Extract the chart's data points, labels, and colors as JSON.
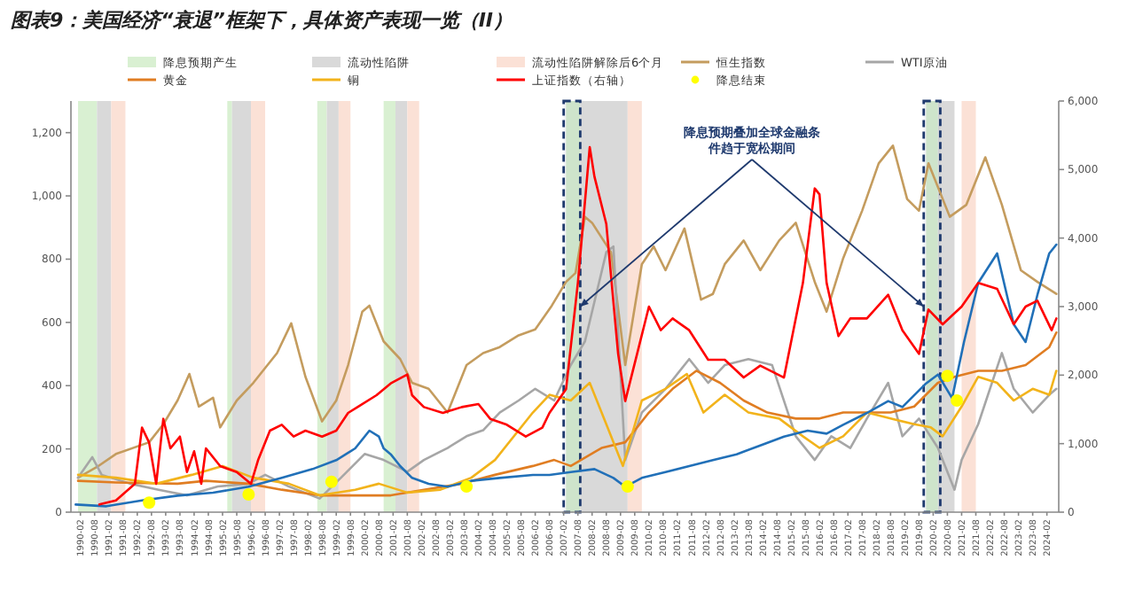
{
  "chart_data": {
    "type": "line",
    "title": "图表9：美国经济“衰退”框架下，具体资产表现一览（II）",
    "legend": "top",
    "xlim": [
      "1989-10",
      "2024-07"
    ],
    "xticks": [
      "1990-02",
      "1990-08",
      "1991-02",
      "1991-08",
      "1992-02",
      "1992-08",
      "1993-02",
      "1993-08",
      "1994-02",
      "1994-08",
      "1995-02",
      "1995-08",
      "1996-02",
      "1996-08",
      "1997-02",
      "1997-08",
      "1998-02",
      "1998-08",
      "1999-02",
      "1999-08",
      "2000-02",
      "2000-08",
      "2001-02",
      "2001-08",
      "2002-02",
      "2002-08",
      "2003-02",
      "2003-08",
      "2004-02",
      "2004-08",
      "2005-02",
      "2005-08",
      "2006-02",
      "2006-08",
      "2007-02",
      "2007-08",
      "2008-02",
      "2008-08",
      "2009-02",
      "2009-08",
      "2010-02",
      "2010-08",
      "2011-02",
      "2011-08",
      "2012-02",
      "2012-08",
      "2013-02",
      "2013-08",
      "2014-02",
      "2014-08",
      "2015-02",
      "2015-08",
      "2016-02",
      "2016-08",
      "2017-02",
      "2017-08",
      "2018-02",
      "2018-08",
      "2019-02",
      "2019-08",
      "2020-02",
      "2020-08",
      "2021-02",
      "2021-08",
      "2022-02",
      "2022-08",
      "2023-02",
      "2023-08",
      "2024-02"
    ],
    "ylim": [
      0,
      1300
    ],
    "yticks": [
      0,
      200,
      400,
      600,
      800,
      {
        "value": 1000,
        "label": "1,000"
      },
      {
        "value": 1200,
        "label": "1,200"
      }
    ],
    "y2lim": [
      0,
      6000
    ],
    "y2ticks": [
      0,
      {
        "value": 1000,
        "label": "1,000"
      },
      {
        "value": 2000,
        "label": "2,000"
      },
      {
        "value": 3000,
        "label": "3,000"
      },
      {
        "value": 4000,
        "label": "4,000"
      },
      {
        "value": 5000,
        "label": "5,000"
      },
      {
        "value": 6000,
        "label": "6,000"
      }
    ],
    "bands": [
      {
        "axis": "x",
        "from": "1990-01",
        "to": "1990-09",
        "label": "降息预期产生",
        "color": "#d9f0d2"
      },
      {
        "axis": "x",
        "from": "1990-09",
        "to": "1991-03",
        "label": "流动性陷阱",
        "color": "#d9d9d9"
      },
      {
        "axis": "x",
        "from": "1991-03",
        "to": "1991-09",
        "label": "流动性陷阱解除后6个月",
        "color": "#fbe1d6"
      },
      {
        "axis": "x",
        "from": "1995-04",
        "to": "1995-06",
        "color": "#d9f0d2"
      },
      {
        "axis": "x",
        "from": "1995-06",
        "to": "1996-02",
        "color": "#d9d9d9"
      },
      {
        "axis": "x",
        "from": "1996-02",
        "to": "1996-08",
        "color": "#fbe1d6"
      },
      {
        "axis": "x",
        "from": "1998-06",
        "to": "1998-10",
        "color": "#d9f0d2"
      },
      {
        "axis": "x",
        "from": "1998-10",
        "to": "1999-03",
        "color": "#d9d9d9"
      },
      {
        "axis": "x",
        "from": "1999-03",
        "to": "1999-08",
        "color": "#fbe1d6"
      },
      {
        "axis": "x",
        "from": "2000-10",
        "to": "2001-03",
        "color": "#d9f0d2"
      },
      {
        "axis": "x",
        "from": "2001-03",
        "to": "2001-08",
        "color": "#d9d9d9"
      },
      {
        "axis": "x",
        "from": "2001-08",
        "to": "2002-01",
        "color": "#fbe1d6"
      },
      {
        "axis": "x",
        "from": "2007-03",
        "to": "2007-09",
        "color": "#d9f0d2"
      },
      {
        "axis": "x",
        "from": "2007-09",
        "to": "2009-05",
        "color": "#d9d9d9"
      },
      {
        "axis": "x",
        "from": "2009-05",
        "to": "2009-11",
        "color": "#fbe1d6"
      },
      {
        "axis": "x",
        "from": "2019-11",
        "to": "2020-04",
        "color": "#d9f0d2"
      },
      {
        "axis": "x",
        "from": "2020-04",
        "to": "2020-11",
        "color": "#d9d9d9"
      },
      {
        "axis": "x",
        "from": "2021-02",
        "to": "2021-08",
        "color": "#fbe1d6"
      },
      {
        "axis": "x",
        "from": "2007-02",
        "to": "2007-09",
        "color": "#1f3a6e"
      },
      {
        "axis": "x",
        "from": "2019-10",
        "to": "2020-05",
        "color": "#1f3a6e"
      }
    ],
    "annotations": [
      {
        "text": "降息预期叠加全球金融条件趋于宽松期间",
        "x": "2007-09",
        "y": 650
      }
    ],
    "series": [
      {
        "name": "恒生指数",
        "color": "#c49c5e",
        "x": [
          "1990-01",
          "1990-09",
          "1991-05",
          "1992-07",
          "1993-01",
          "1993-07",
          "1993-12",
          "1994-04",
          "1994-10",
          "1995-01",
          "1995-08",
          "1996-03",
          "1997-01",
          "1997-07",
          "1998-01",
          "1998-08",
          "1999-02",
          "1999-07",
          "2000-01",
          "2000-04",
          "2000-10",
          "2001-05",
          "2001-10",
          "2002-05",
          "2003-01",
          "2003-09",
          "2004-04",
          "2004-11",
          "2005-07",
          "2006-02",
          "2006-09",
          "2007-03",
          "2007-07",
          "2007-11",
          "2008-02",
          "2008-10",
          "2009-04",
          "2009-11",
          "2010-04",
          "2010-09",
          "2011-05",
          "2011-12",
          "2012-05",
          "2012-10",
          "2013-06",
          "2014-01",
          "2014-09",
          "2015-04",
          "2015-12",
          "2016-05",
          "2016-12",
          "2017-08",
          "2018-03",
          "2018-09",
          "2019-03",
          "2019-08",
          "2019-12",
          "2020-09",
          "2021-04",
          "2021-12",
          "2022-07",
          "2023-03",
          "2023-10",
          "2024-06"
        ],
        "values": [
          109,
          143,
          184,
          221,
          278,
          353,
          437,
          334,
          362,
          268,
          353,
          409,
          503,
          597,
          428,
          287,
          353,
          465,
          634,
          653,
          540,
          484,
          409,
          390,
          315,
          465,
          503,
          522,
          559,
          578,
          653,
          728,
          756,
          934,
          915,
          822,
          465,
          784,
          840,
          765,
          897,
          672,
          690,
          784,
          859,
          765,
          859,
          915,
          728,
          634,
          803,
          953,
          1103,
          1159,
          990,
          953,
          1103,
          934,
          972,
          1122,
          972,
          765,
          728,
          690
        ]
      },
      {
        "name": "WTI原油",
        "color": "#a6a6a6",
        "x": [
          "1990-01",
          "1990-07",
          "1990-11",
          "1991-11",
          "1992-11",
          "1993-11",
          "1994-12",
          "1996-01",
          "1996-08",
          "1997-06",
          "1998-07",
          "1999-04",
          "2000-02",
          "2000-10",
          "2001-08",
          "2002-03",
          "2003-01",
          "2003-09",
          "2004-04",
          "2004-11",
          "2005-07",
          "2006-02",
          "2006-10",
          "2007-05",
          "2007-11",
          "2008-08",
          "2008-11",
          "2009-04",
          "2009-11",
          "2010-09",
          "2011-07",
          "2012-03",
          "2012-10",
          "2013-08",
          "2014-06",
          "2015-04",
          "2015-12",
          "2016-07",
          "2017-03",
          "2017-10",
          "2018-07",
          "2019-01",
          "2019-08",
          "2020-04",
          "2020-11",
          "2021-02",
          "2021-09",
          "2022-07",
          "2022-12",
          "2023-08",
          "2024-03",
          "2024-06"
        ],
        "values": [
          109,
          174,
          118,
          90,
          71,
          53,
          81,
          90,
          118,
          81,
          43,
          109,
          184,
          165,
          128,
          165,
          203,
          240,
          259,
          315,
          353,
          390,
          353,
          465,
          540,
          822,
          840,
          165,
          315,
          390,
          484,
          409,
          465,
          484,
          465,
          240,
          165,
          240,
          203,
          296,
          409,
          240,
          296,
          203,
          71,
          165,
          278,
          503,
          390,
          315,
          371,
          390
        ]
      },
      {
        "name": "黄金",
        "color": "#e07d22",
        "x": [
          "1990-01",
          "1991-05",
          "1993-07",
          "1994-07",
          "1996-01",
          "1997-03",
          "1998-07",
          "1999-10",
          "2001-01",
          "2002-03",
          "2003-07",
          "2004-09",
          "2006-01",
          "2006-10",
          "2007-05",
          "2008-06",
          "2009-04",
          "2010-02",
          "2010-12",
          "2011-10",
          "2012-08",
          "2013-06",
          "2014-04",
          "2015-04",
          "2016-02",
          "2016-12",
          "2017-10",
          "2018-08",
          "2019-06",
          "2020-04",
          "2020-11",
          "2021-09",
          "2022-07",
          "2023-05",
          "2024-03",
          "2024-06"
        ],
        "values": [
          99,
          94,
          90,
          99,
          90,
          71,
          53,
          53,
          53,
          71,
          90,
          118,
          146,
          165,
          146,
          203,
          221,
          315,
          390,
          447,
          409,
          353,
          315,
          296,
          296,
          315,
          315,
          315,
          334,
          409,
          428,
          447,
          447,
          465,
          522,
          568
        ]
      },
      {
        "name": "铜",
        "color": "#f2b31b",
        "x": [
          "1990-01",
          "1991-05",
          "1992-10",
          "1994-01",
          "1995-02",
          "1996-03",
          "1997-06",
          "1998-07",
          "1999-10",
          "2000-08",
          "2001-08",
          "2002-10",
          "2003-11",
          "2004-09",
          "2006-01",
          "2006-08",
          "2007-05",
          "2008-01",
          "2008-08",
          "2009-03",
          "2009-11",
          "2010-09",
          "2011-06",
          "2012-01",
          "2012-10",
          "2013-08",
          "2014-09",
          "2015-07",
          "2016-02",
          "2016-12",
          "2017-10",
          "2018-08",
          "2019-06",
          "2020-01",
          "2020-06",
          "2021-02",
          "2021-09",
          "2022-05",
          "2022-12",
          "2023-08",
          "2024-03",
          "2024-06"
        ],
        "values": [
          118,
          109,
          90,
          118,
          146,
          109,
          90,
          53,
          71,
          90,
          62,
          71,
          109,
          165,
          315,
          371,
          353,
          409,
          278,
          146,
          353,
          390,
          437,
          315,
          371,
          315,
          296,
          240,
          203,
          240,
          315,
          296,
          278,
          268,
          240,
          334,
          428,
          409,
          353,
          390,
          371,
          447
        ]
      },
      {
        "axis": "y2",
        "color": "#2170b8",
        "x": [
          "1989-12",
          "1991-01",
          "1992-04",
          "1993-07",
          "1994-10",
          "1996-01",
          "1997-03",
          "1998-04",
          "1999-02",
          "1999-10",
          "2000-04",
          "2000-08",
          "2000-10",
          "2001-01",
          "2001-05",
          "2001-10",
          "2002-05",
          "2003-01",
          "2003-11",
          "2004-11",
          "2006-01",
          "2006-08",
          "2007-05",
          "2008-03",
          "2008-11",
          "2009-04",
          "2009-11",
          "2010-09",
          "2011-07",
          "2012-05",
          "2013-03",
          "2014-01",
          "2014-11",
          "2015-09",
          "2016-05",
          "2016-12",
          "2017-10",
          "2018-07",
          "2019-01",
          "2019-11",
          "2020-04",
          "2020-10",
          "2021-03",
          "2021-09",
          "2022-05",
          "2022-12",
          "2023-05",
          "2023-10",
          "2024-03",
          "2024-06"
        ],
        "values": [
          112,
          86,
          172,
          241,
          284,
          371,
          500,
          629,
          759,
          931,
          1190,
          1103,
          931,
          845,
          672,
          500,
          414,
          371,
          457,
          500,
          543,
          543,
          586,
          629,
          500,
          371,
          500,
          586,
          672,
          759,
          845,
          974,
          1103,
          1190,
          1146,
          1276,
          1448,
          1621,
          1534,
          1879,
          2008,
          1664,
          2483,
          3345,
          3776,
          2741,
          2483,
          3172,
          3776,
          3905
        ]
      },
      {
        "name": "上证指数（右轴）",
        "axis": "y2",
        "color": "#ff0000",
        "x": [
          "1990-10",
          "1991-05",
          "1992-01",
          "1992-04",
          "1992-07",
          "1992-10",
          "1993-01",
          "1993-04",
          "1993-08",
          "1993-11",
          "1994-02",
          "1994-05",
          "1994-07",
          "1995-01",
          "1995-08",
          "1996-02",
          "1996-05",
          "1996-10",
          "1997-03",
          "1997-08",
          "1998-01",
          "1998-08",
          "1999-02",
          "1999-07",
          "1999-11",
          "2000-07",
          "2001-01",
          "2001-08",
          "2001-10",
          "2002-03",
          "2002-11",
          "2003-07",
          "2004-02",
          "2004-07",
          "2005-02",
          "2005-10",
          "2006-05",
          "2006-08",
          "2007-03",
          "2007-08",
          "2008-01",
          "2008-03",
          "2008-08",
          "2009-01",
          "2009-04",
          "2009-09",
          "2010-02",
          "2010-07",
          "2010-12",
          "2011-07",
          "2012-03",
          "2012-10",
          "2013-06",
          "2014-01",
          "2014-11",
          "2015-07",
          "2015-12",
          "2016-02",
          "2016-05",
          "2016-10",
          "2017-03",
          "2017-10",
          "2018-07",
          "2019-01",
          "2019-08",
          "2019-12",
          "2020-06",
          "2021-02",
          "2021-09",
          "2022-05",
          "2022-12",
          "2023-05",
          "2023-10",
          "2024-04",
          "2024-06"
        ],
        "values": [
          112,
          172,
          414,
          1233,
          1017,
          414,
          1362,
          931,
          1103,
          586,
          888,
          414,
          931,
          672,
          586,
          414,
          759,
          1190,
          1276,
          1103,
          1190,
          1103,
          1190,
          1448,
          1534,
          1707,
          1879,
          2008,
          1707,
          1534,
          1448,
          1534,
          1577,
          1362,
          1276,
          1103,
          1233,
          1448,
          1793,
          3345,
          5327,
          4896,
          4206,
          2310,
          1621,
          2310,
          3000,
          2655,
          2827,
          2655,
          2224,
          2224,
          1965,
          2138,
          1965,
          3345,
          4724,
          4638,
          3345,
          2569,
          2827,
          2827,
          3172,
          2655,
          2310,
          2957,
          2741,
          3000,
          3345,
          3259,
          2741,
          3000,
          3086,
          2655,
          2827
        ]
      },
      {
        "name": "降息结束",
        "type": "scatter",
        "marker": "circle",
        "color": "#ffff00",
        "x": [
          "1992-07",
          "1996-01",
          "1998-12",
          "2003-09",
          "2009-05",
          "2020-08",
          "2020-12"
        ],
        "values": [
          30,
          56,
          96,
          81,
          81,
          431,
          353
        ]
      }
    ]
  }
}
